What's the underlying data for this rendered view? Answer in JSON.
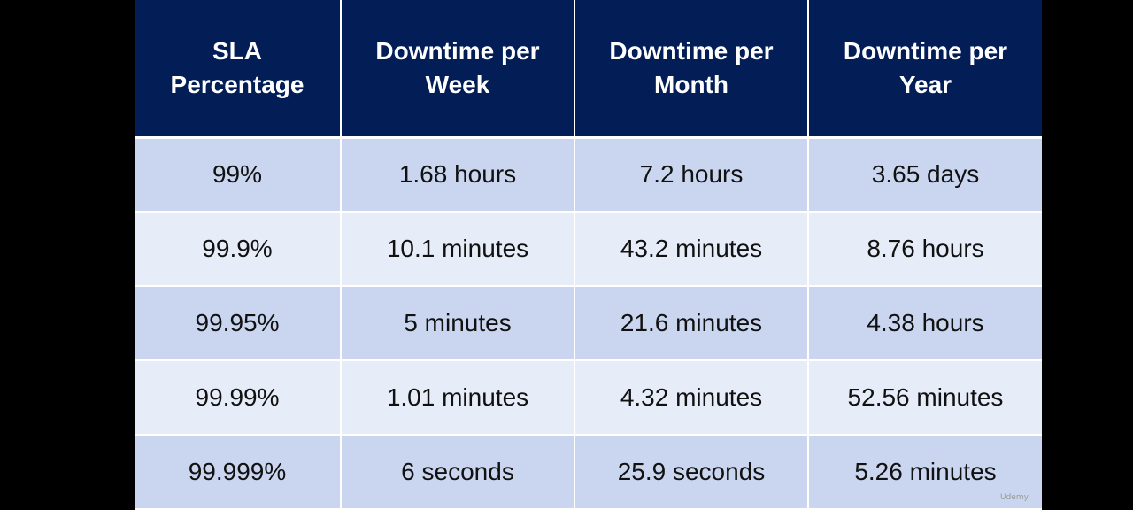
{
  "table": {
    "headers": [
      "SLA Percentage",
      "Downtime per Week",
      "Downtime per Month",
      "Downtime per Year"
    ],
    "rows": [
      [
        "99%",
        "1.68 hours",
        "7.2 hours",
        "3.65 days"
      ],
      [
        "99.9%",
        "10.1 minutes",
        "43.2 minutes",
        "8.76 hours"
      ],
      [
        "99.95%",
        "5 minutes",
        "21.6 minutes",
        "4.38 hours"
      ],
      [
        "99.99%",
        "1.01 minutes",
        "4.32 minutes",
        "52.56 minutes"
      ],
      [
        "99.999%",
        "6 seconds",
        "25.9 seconds",
        "5.26 minutes"
      ]
    ]
  },
  "watermark": {
    "text": "Udemy"
  },
  "colors": {
    "header_bg": "#031d57",
    "row_odd_bg": "#cad6ef",
    "row_even_bg": "#e6ecf8",
    "page_bg": "#000000"
  }
}
